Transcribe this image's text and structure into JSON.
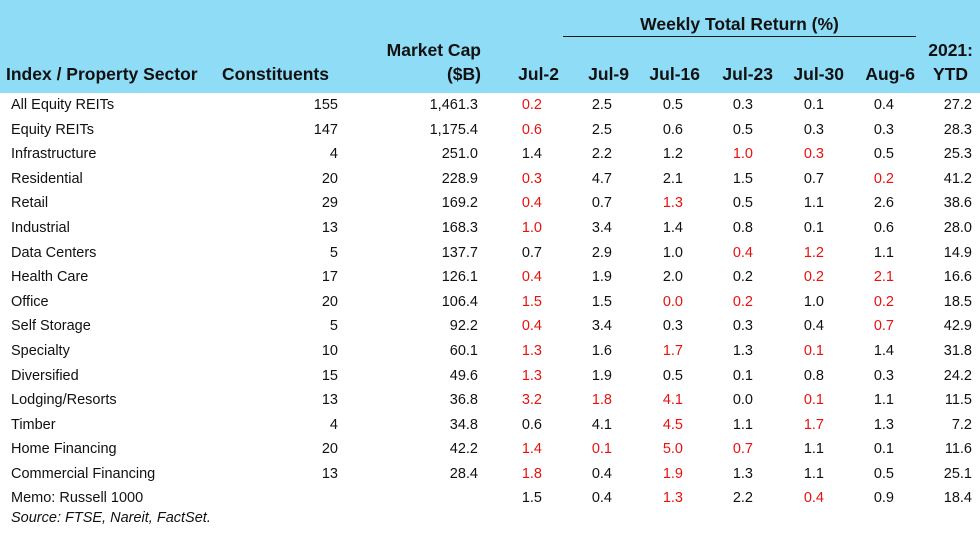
{
  "header": {
    "col_sector": "Index / Property Sector",
    "col_constituents": "Constituents",
    "col_marketcap_line1": "Market Cap",
    "col_marketcap_line2": "($B)",
    "group_title": "Weekly Total Return (%)",
    "weeks": [
      "Jul-2",
      "Jul-9",
      "Jul-16",
      "Jul-23",
      "Jul-30",
      "Aug-6"
    ],
    "ytd_line1": "2021:",
    "ytd_line2": "YTD"
  },
  "colors": {
    "header_bg": "#8fdcf7",
    "negative": "#e8110e"
  },
  "rows": [
    {
      "name": "All Equity REITs",
      "constituents": "155",
      "marketcap": "1,461.3",
      "returns": [
        "0.2",
        "2.5",
        "0.5",
        "0.3",
        "0.1",
        "0.4"
      ],
      "neg": [
        true,
        false,
        false,
        false,
        false,
        false
      ],
      "ytd": "27.2"
    },
    {
      "name": "Equity REITs",
      "constituents": "147",
      "marketcap": "1,175.4",
      "returns": [
        "0.6",
        "2.5",
        "0.6",
        "0.5",
        "0.3",
        "0.3"
      ],
      "neg": [
        true,
        false,
        false,
        false,
        false,
        false
      ],
      "ytd": "28.3"
    },
    {
      "name": "Infrastructure",
      "constituents": "4",
      "marketcap": "251.0",
      "returns": [
        "1.4",
        "2.2",
        "1.2",
        "1.0",
        "0.3",
        "0.5"
      ],
      "neg": [
        false,
        false,
        false,
        true,
        true,
        false
      ],
      "ytd": "25.3"
    },
    {
      "name": "Residential",
      "constituents": "20",
      "marketcap": "228.9",
      "returns": [
        "0.3",
        "4.7",
        "2.1",
        "1.5",
        "0.7",
        "0.2"
      ],
      "neg": [
        true,
        false,
        false,
        false,
        false,
        true
      ],
      "ytd": "41.2"
    },
    {
      "name": "Retail",
      "constituents": "29",
      "marketcap": "169.2",
      "returns": [
        "0.4",
        "0.7",
        "1.3",
        "0.5",
        "1.1",
        "2.6"
      ],
      "neg": [
        true,
        false,
        true,
        false,
        false,
        false
      ],
      "ytd": "38.6"
    },
    {
      "name": "Industrial",
      "constituents": "13",
      "marketcap": "168.3",
      "returns": [
        "1.0",
        "3.4",
        "1.4",
        "0.8",
        "0.1",
        "0.6"
      ],
      "neg": [
        true,
        false,
        false,
        false,
        false,
        false
      ],
      "ytd": "28.0"
    },
    {
      "name": "Data Centers",
      "constituents": "5",
      "marketcap": "137.7",
      "returns": [
        "0.7",
        "2.9",
        "1.0",
        "0.4",
        "1.2",
        "1.1"
      ],
      "neg": [
        false,
        false,
        false,
        true,
        true,
        false
      ],
      "ytd": "14.9"
    },
    {
      "name": "Health Care",
      "constituents": "17",
      "marketcap": "126.1",
      "returns": [
        "0.4",
        "1.9",
        "2.0",
        "0.2",
        "0.2",
        "2.1"
      ],
      "neg": [
        true,
        false,
        false,
        false,
        true,
        true
      ],
      "ytd": "16.6"
    },
    {
      "name": "Office",
      "constituents": "20",
      "marketcap": "106.4",
      "returns": [
        "1.5",
        "1.5",
        "0.0",
        "0.2",
        "1.0",
        "0.2"
      ],
      "neg": [
        true,
        false,
        true,
        true,
        false,
        true
      ],
      "ytd": "18.5"
    },
    {
      "name": "Self Storage",
      "constituents": "5",
      "marketcap": "92.2",
      "returns": [
        "0.4",
        "3.4",
        "0.3",
        "0.3",
        "0.4",
        "0.7"
      ],
      "neg": [
        true,
        false,
        false,
        false,
        false,
        true
      ],
      "ytd": "42.9"
    },
    {
      "name": "Specialty",
      "constituents": "10",
      "marketcap": "60.1",
      "returns": [
        "1.3",
        "1.6",
        "1.7",
        "1.3",
        "0.1",
        "1.4"
      ],
      "neg": [
        true,
        false,
        true,
        false,
        true,
        false
      ],
      "ytd": "31.8"
    },
    {
      "name": "Diversified",
      "constituents": "15",
      "marketcap": "49.6",
      "returns": [
        "1.3",
        "1.9",
        "0.5",
        "0.1",
        "0.8",
        "0.3"
      ],
      "neg": [
        true,
        false,
        false,
        false,
        false,
        false
      ],
      "ytd": "24.2"
    },
    {
      "name": "Lodging/Resorts",
      "constituents": "13",
      "marketcap": "36.8",
      "returns": [
        "3.2",
        "1.8",
        "4.1",
        "0.0",
        "0.1",
        "1.1"
      ],
      "neg": [
        true,
        true,
        true,
        false,
        true,
        false
      ],
      "ytd": "11.5"
    },
    {
      "name": "Timber",
      "constituents": "4",
      "marketcap": "34.8",
      "returns": [
        "0.6",
        "4.1",
        "4.5",
        "1.1",
        "1.7",
        "1.3"
      ],
      "neg": [
        false,
        false,
        true,
        false,
        true,
        false
      ],
      "ytd": "7.2"
    },
    {
      "name": "Home Financing",
      "constituents": "20",
      "marketcap": "42.2",
      "returns": [
        "1.4",
        "0.1",
        "5.0",
        "0.7",
        "1.1",
        "0.1"
      ],
      "neg": [
        true,
        true,
        true,
        true,
        false,
        false
      ],
      "ytd": "11.6"
    },
    {
      "name": "Commercial Financing",
      "constituents": "13",
      "marketcap": "28.4",
      "returns": [
        "1.8",
        "0.4",
        "1.9",
        "1.3",
        "1.1",
        "0.5"
      ],
      "neg": [
        true,
        false,
        true,
        false,
        false,
        false
      ],
      "ytd": "25.1"
    }
  ],
  "memo": {
    "name": "Memo: Russell 1000",
    "returns": [
      "1.5",
      "0.4",
      "1.3",
      "2.2",
      "0.4",
      "0.9"
    ],
    "neg": [
      false,
      false,
      true,
      false,
      true,
      false
    ],
    "ytd": "18.4"
  },
  "source": "Source: FTSE, Nareit, FactSet."
}
